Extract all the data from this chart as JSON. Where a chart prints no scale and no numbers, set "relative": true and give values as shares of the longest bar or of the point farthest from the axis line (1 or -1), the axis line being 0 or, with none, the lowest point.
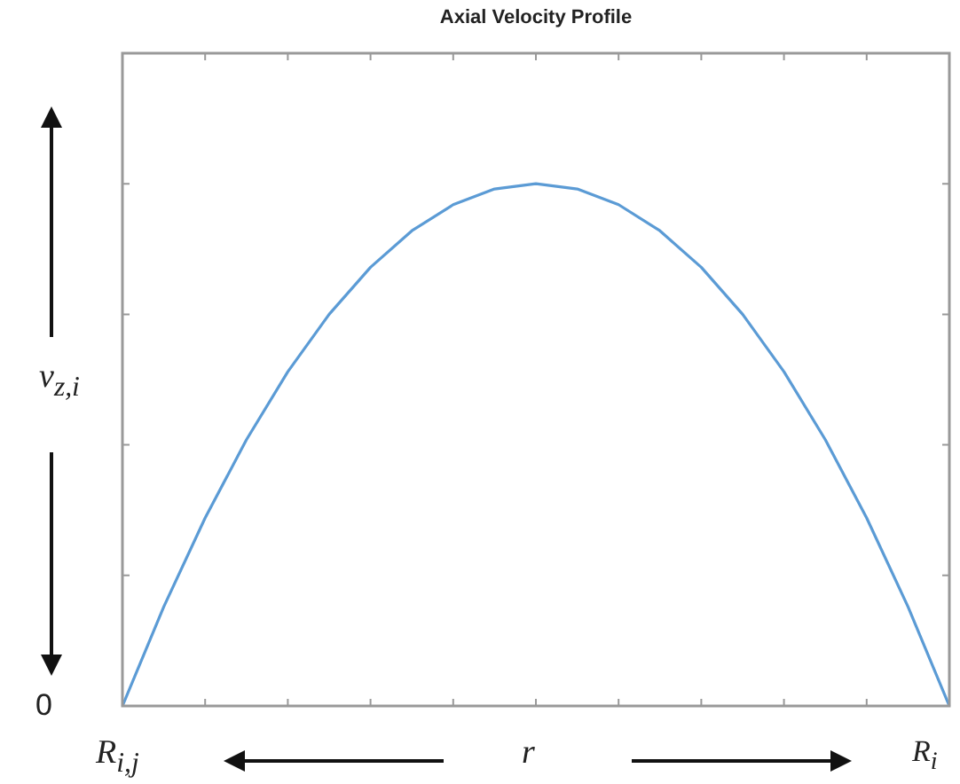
{
  "chart_data": {
    "type": "line",
    "title": "Axial Velocity Profile",
    "xlabel": "r",
    "ylabel": "v$_{z,i}$",
    "relative": true,
    "categories": [
      null,
      null,
      null,
      null,
      null,
      null,
      null,
      null,
      null,
      null,
      null,
      null,
      null,
      null,
      null,
      null,
      null,
      null,
      null,
      null,
      null
    ],
    "series": [
      {
        "color": "#5b9bd5",
        "values": [
          0,
          0.19,
          0.36,
          0.51,
          0.64,
          0.75,
          0.84,
          0.91,
          0.96,
          0.99,
          1,
          0.99,
          0.96,
          0.91,
          0.84,
          0.75,
          0.64,
          0.51,
          0.36,
          0.19,
          0
        ]
      }
    ],
    "annotations": [
      "0",
      "R$_{i,j}$",
      "R$_{i}$"
    ],
    "legend": false,
    "marker": "none",
    "line_style": "solid",
    "grid": false
  }
}
